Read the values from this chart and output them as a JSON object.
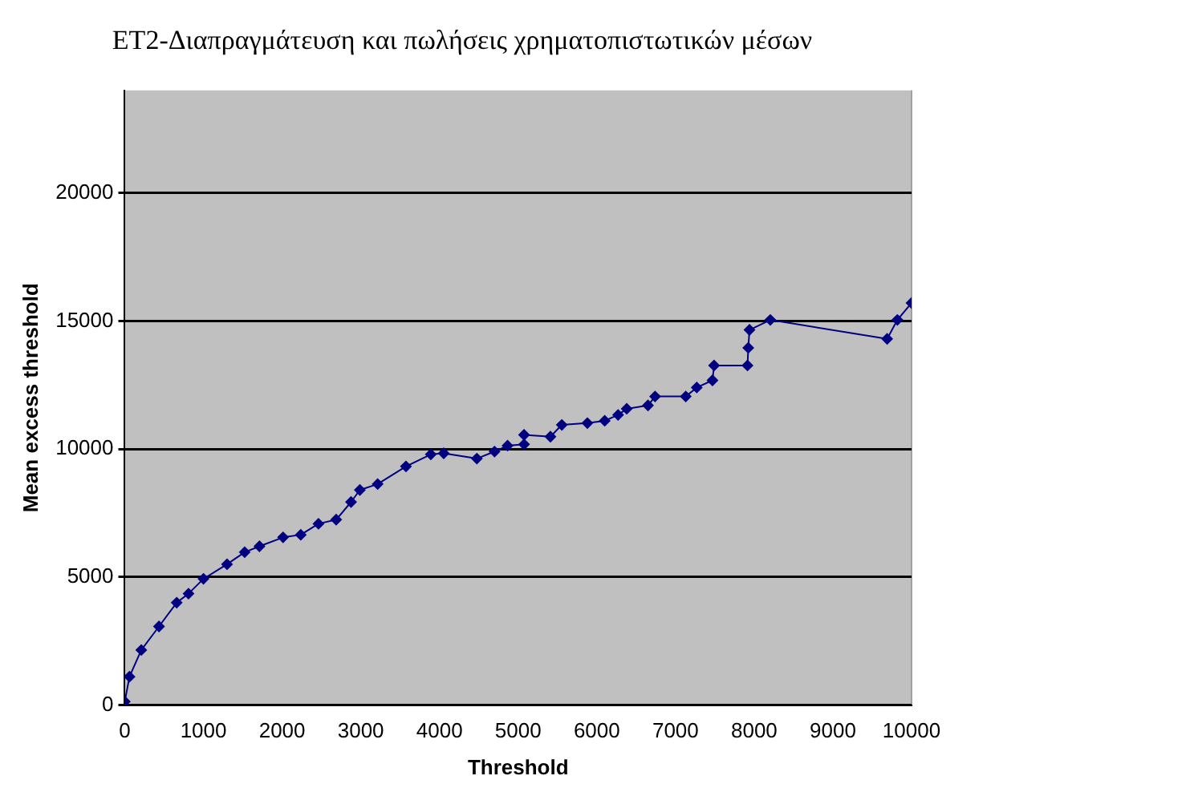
{
  "chart_data": {
    "type": "line",
    "title": "ET2-Διαπραγμάτευση και πωλήσεις χρηματοπιστωτικών μέσων",
    "xlabel": "Threshold",
    "ylabel": "Mean excess threshold",
    "series": [
      {
        "color": "#000080",
        "x": [
          0,
          60,
          210,
          435,
          660,
          810,
          1000,
          1300,
          1524,
          1712,
          2012,
          2237,
          2462,
          2687,
          2876,
          2988,
          3214,
          3574,
          3890,
          4054,
          4475,
          4700,
          4865,
          5075,
          5075,
          5410,
          5555,
          5880,
          6100,
          6270,
          6380,
          6650,
          6740,
          7130,
          7270,
          7470,
          7490,
          7915,
          7925,
          7940,
          8205,
          9690,
          9820,
          10000
        ],
        "values": [
          140,
          1110,
          2150,
          3070,
          4000,
          4350,
          4930,
          5500,
          5970,
          6200,
          6550,
          6650,
          7080,
          7240,
          7930,
          8400,
          8630,
          9320,
          9790,
          9830,
          9625,
          9900,
          10130,
          10180,
          10550,
          10480,
          10940,
          11010,
          11100,
          11330,
          11570,
          11700,
          12050,
          12050,
          12400,
          12680,
          13260,
          13260,
          13950,
          14650,
          15040,
          14300,
          15040,
          15700
        ]
      }
    ],
    "xlim": [
      0,
      10000
    ],
    "xticks": [
      0,
      1000,
      2000,
      3000,
      4000,
      5000,
      6000,
      7000,
      8000,
      9000,
      10000
    ],
    "ylim": [
      0,
      24000
    ],
    "yticks": [
      0,
      5000,
      10000,
      15000,
      20000
    ],
    "grid": "y",
    "legend": false,
    "marker": "diamond",
    "line_style": "solid"
  }
}
